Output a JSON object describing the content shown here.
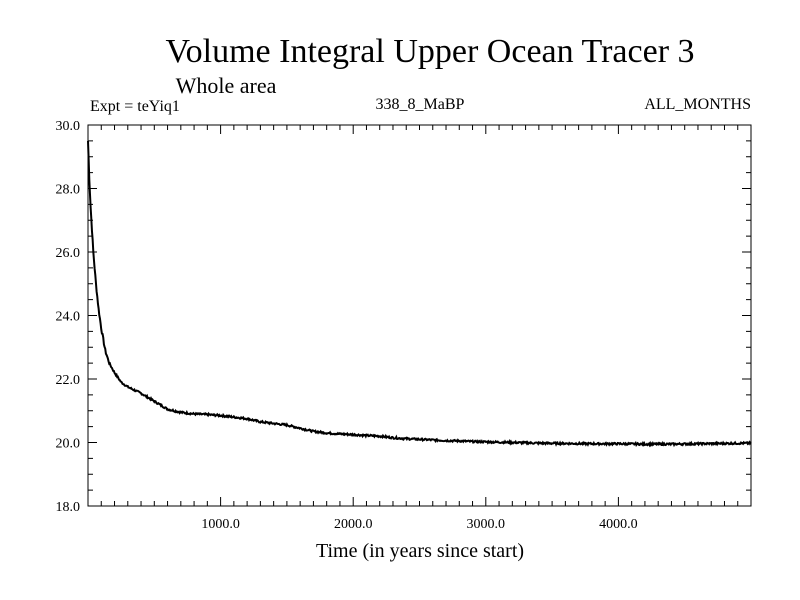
{
  "chart_data": {
    "type": "line",
    "title": "Volume Integral Upper Ocean Tracer 3",
    "subtitle": "Whole area",
    "expt_label": "Expt = teYiq1",
    "run_label": "338_8_MaBP",
    "months_label": "ALL_MONTHS",
    "xlabel": "Time (in years since start)",
    "ylabel": "",
    "xlim": [
      0,
      5000
    ],
    "ylim": [
      18.0,
      30.0
    ],
    "xticks": [
      1000,
      2000,
      3000,
      4000
    ],
    "xtick_labels": [
      "1000.0",
      "2000.0",
      "3000.0",
      "4000.0"
    ],
    "yticks": [
      18,
      20,
      22,
      24,
      26,
      28,
      30
    ],
    "ytick_labels": [
      "18.0",
      "20.0",
      "22.0",
      "24.0",
      "26.0",
      "28.0",
      "30.0"
    ],
    "grid": false,
    "series": [
      {
        "name": "Tracer 3",
        "x": [
          0,
          10,
          20,
          40,
          60,
          80,
          100,
          130,
          160,
          200,
          250,
          300,
          400,
          500,
          600,
          700,
          800,
          900,
          1000,
          1100,
          1200,
          1300,
          1400,
          1500,
          1600,
          1700,
          1800,
          1900,
          2000,
          2100,
          2200,
          2300,
          2400,
          2500,
          2600,
          2700,
          2800,
          2900,
          3000,
          3200,
          3400,
          3600,
          3800,
          4000,
          4200,
          4400,
          4600,
          4800,
          5000
        ],
        "y": [
          29.5,
          28.3,
          27.4,
          26.0,
          25.0,
          24.2,
          23.6,
          22.9,
          22.5,
          22.2,
          21.9,
          21.75,
          21.55,
          21.3,
          21.05,
          20.95,
          20.9,
          20.88,
          20.85,
          20.8,
          20.75,
          20.65,
          20.6,
          20.55,
          20.45,
          20.35,
          20.3,
          20.27,
          20.25,
          20.22,
          20.2,
          20.15,
          20.12,
          20.1,
          20.08,
          20.06,
          20.05,
          20.03,
          20.02,
          20.0,
          19.98,
          19.97,
          19.96,
          19.96,
          19.95,
          19.95,
          19.96,
          19.97,
          19.98
        ]
      }
    ]
  }
}
